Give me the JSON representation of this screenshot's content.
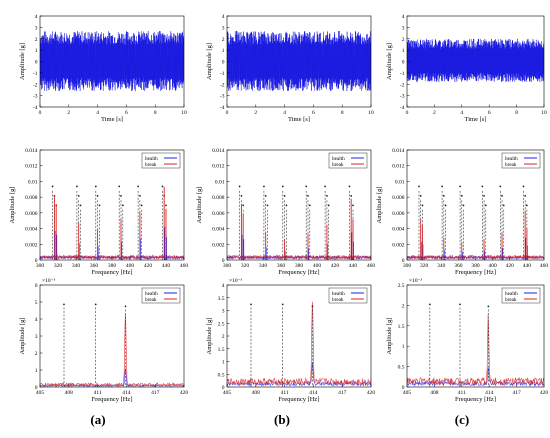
{
  "captions": [
    "(a)",
    "(b)",
    "(c)"
  ],
  "colors": {
    "health": "#2020e8",
    "break": "#d8262a",
    "markers": "#333333",
    "noise": "#1a1ae0"
  },
  "chart_data": [
    {
      "type": "line",
      "panel": "a",
      "row": "time",
      "xlabel": "Time [s]",
      "ylabel": "Amplitude [g]",
      "xlim": [
        0,
        10
      ],
      "ylim": [
        -4,
        4
      ],
      "xticks": [
        0,
        2,
        4,
        6,
        8,
        10
      ],
      "yticks": [
        -4,
        -3,
        -2,
        -1,
        0,
        1,
        2,
        3,
        4
      ],
      "series": [
        {
          "name": "signal",
          "envelope": [
            2.7,
            2.6
          ]
        }
      ]
    },
    {
      "type": "line",
      "panel": "b",
      "row": "time",
      "xlabel": "Time [s]",
      "ylabel": "Amplitude [g]",
      "xlim": [
        0,
        10
      ],
      "ylim": [
        -4,
        4
      ],
      "xticks": [
        0,
        2,
        4,
        6,
        8,
        10
      ],
      "yticks": [
        -4,
        -3,
        -2,
        -1,
        0,
        1,
        2,
        3,
        4
      ],
      "series": [
        {
          "name": "signal",
          "envelope": [
            2.7,
            2.6
          ]
        }
      ]
    },
    {
      "type": "line",
      "panel": "c",
      "row": "time",
      "xlabel": "Time [s]",
      "ylabel": "Amplitude [g]",
      "xlim": [
        0,
        10
      ],
      "ylim": [
        -4,
        4
      ],
      "xticks": [
        0,
        2,
        4,
        6,
        8,
        10
      ],
      "yticks": [
        -4,
        -3,
        -2,
        -1,
        0,
        1,
        2,
        3,
        4
      ],
      "series": [
        {
          "name": "signal",
          "envelope": [
            2.0,
            1.8
          ]
        }
      ]
    },
    {
      "type": "line",
      "panel": "a",
      "row": "spectrum",
      "xlabel": "Frequency [Hz]",
      "ylabel": "Amplitude [g]",
      "xlim": [
        300,
        460
      ],
      "ylim": [
        0,
        0.014
      ],
      "xticks": [
        300,
        320,
        340,
        360,
        380,
        400,
        420,
        440,
        460
      ],
      "yticks": [
        0,
        0.002,
        0.004,
        0.006,
        0.008,
        0.01,
        0.012,
        0.014
      ],
      "legend": [
        "health",
        "break"
      ],
      "markers": [
        314,
        316,
        318,
        341,
        343,
        345,
        362,
        364,
        366,
        388,
        390,
        392,
        409,
        411,
        413,
        436,
        438,
        440
      ],
      "peaks": [
        [
          316,
          0.0082
        ],
        [
          318,
          0.0071
        ],
        [
          343,
          0.0047
        ],
        [
          364,
          0.0039
        ],
        [
          390,
          0.0052
        ],
        [
          411,
          0.0061
        ],
        [
          438,
          0.0093
        ],
        [
          440,
          0.0065
        ]
      ]
    },
    {
      "type": "line",
      "panel": "b",
      "row": "spectrum",
      "xlabel": "Frequency [Hz]",
      "ylabel": "Amplitude [g]",
      "xlim": [
        300,
        460
      ],
      "ylim": [
        0,
        0.014
      ],
      "xticks": [
        300,
        320,
        340,
        360,
        380,
        400,
        420,
        440,
        460
      ],
      "yticks": [
        0,
        0.002,
        0.004,
        0.006,
        0.008,
        0.01,
        0.012,
        0.014
      ],
      "legend": [
        "health",
        "break"
      ],
      "markers": [
        314,
        316,
        318,
        341,
        343,
        345,
        362,
        364,
        366,
        388,
        390,
        392,
        409,
        411,
        413,
        436,
        438,
        440
      ],
      "peaks": [
        [
          316,
          0.0071
        ],
        [
          318,
          0.0059
        ],
        [
          343,
          0.0036
        ],
        [
          364,
          0.0026
        ],
        [
          390,
          0.0033
        ],
        [
          411,
          0.0045
        ],
        [
          438,
          0.0078
        ],
        [
          440,
          0.0052
        ]
      ]
    },
    {
      "type": "line",
      "panel": "c",
      "row": "spectrum",
      "xlabel": "Frequency [Hz]",
      "ylabel": "Amplitude [g]",
      "xlim": [
        300,
        460
      ],
      "ylim": [
        0,
        0.014
      ],
      "xticks": [
        300,
        320,
        340,
        360,
        380,
        400,
        420,
        440,
        460
      ],
      "yticks": [
        0,
        0.002,
        0.004,
        0.006,
        0.008,
        0.01,
        0.012,
        0.014
      ],
      "legend": [
        "health",
        "break"
      ],
      "markers": [
        314,
        316,
        318,
        341,
        343,
        345,
        362,
        364,
        366,
        388,
        390,
        392,
        409,
        411,
        413,
        436,
        438,
        440
      ],
      "peaks": [
        [
          316,
          0.0052
        ],
        [
          318,
          0.0044
        ],
        [
          343,
          0.0028
        ],
        [
          364,
          0.0023
        ],
        [
          390,
          0.0026
        ],
        [
          411,
          0.0034
        ],
        [
          438,
          0.0063
        ],
        [
          440,
          0.0041
        ]
      ]
    },
    {
      "type": "line",
      "panel": "a",
      "row": "zoom",
      "xlabel": "Frequency [Hz]",
      "ylabel": "Amplitude [g]",
      "exponent": "×10⁻³",
      "xlim": [
        405,
        420
      ],
      "ylim": [
        0,
        6
      ],
      "xticks": [
        405,
        408,
        411,
        414,
        417,
        420
      ],
      "yticks": [
        0,
        1,
        2,
        3,
        4,
        5,
        6
      ],
      "legend": [
        "health",
        "break"
      ],
      "markers": [
        407.5,
        410.8,
        413.9
      ],
      "peak": [
        413.9,
        4.3
      ],
      "noise": 0.15
    },
    {
      "type": "line",
      "panel": "b",
      "row": "zoom",
      "xlabel": "Frequency [Hz]",
      "ylabel": "Amplitude [g]",
      "exponent": "×10⁻³",
      "xlim": [
        405,
        420
      ],
      "ylim": [
        0,
        4
      ],
      "xticks": [
        405,
        408,
        411,
        414,
        417,
        420
      ],
      "yticks": [
        0,
        0.5,
        1,
        1.5,
        2,
        2.5,
        3,
        3.5,
        4
      ],
      "legend": [
        "health",
        "break"
      ],
      "markers": [
        407.5,
        410.8,
        413.9
      ],
      "peak": [
        413.9,
        3.3
      ],
      "noise": 0.22
    },
    {
      "type": "line",
      "panel": "c",
      "row": "zoom",
      "xlabel": "Frequency [Hz]",
      "ylabel": "Amplitude [g]",
      "exponent": "×10⁻³",
      "xlim": [
        405,
        420
      ],
      "ylim": [
        0,
        2.5
      ],
      "xticks": [
        405,
        408,
        411,
        414,
        417,
        420
      ],
      "yticks": [
        0,
        0.5,
        1,
        1.5,
        2,
        2.5
      ],
      "legend": [
        "health",
        "break"
      ],
      "markers": [
        407.5,
        410.8,
        413.9
      ],
      "peak": [
        413.9,
        1.6
      ],
      "noise": 0.15
    }
  ]
}
